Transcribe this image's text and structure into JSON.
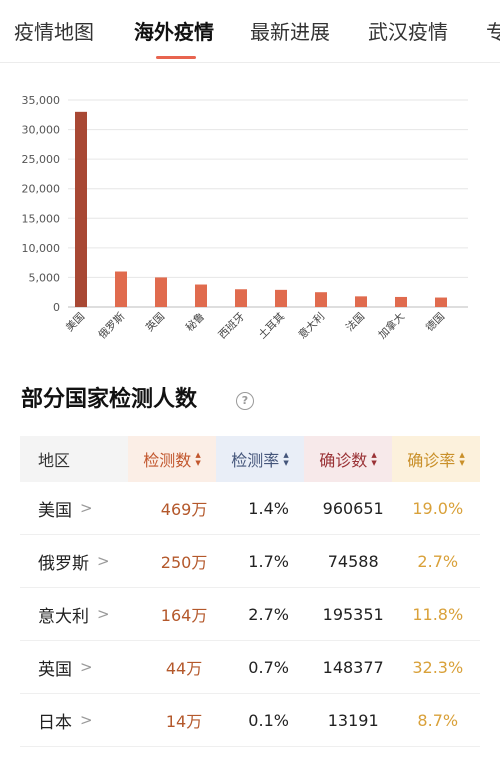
{
  "tabs": [
    {
      "label": "疫情地图",
      "active": false
    },
    {
      "label": "海外疫情",
      "active": true
    },
    {
      "label": "最新进展",
      "active": false
    },
    {
      "label": "武汉疫情",
      "active": false
    },
    {
      "label": "专",
      "active": false
    }
  ],
  "colors": {
    "accent": "#e8644f",
    "bar_first": "#a84834",
    "bar_other": "#e06b4e",
    "test_count": "#b4582b",
    "confirm_rate": "#d9a13a"
  },
  "chart_data": {
    "type": "bar",
    "categories": [
      "美国",
      "俄罗斯",
      "英国",
      "秘鲁",
      "西班牙",
      "土耳其",
      "意大利",
      "法国",
      "加拿大",
      "德国"
    ],
    "values": [
      33000,
      6000,
      5000,
      3800,
      3000,
      2900,
      2500,
      1800,
      1700,
      1600
    ],
    "y_ticks": [
      "0",
      "5,000",
      "10,000",
      "15,000",
      "20,000",
      "25,000",
      "30,000",
      "35,000"
    ],
    "ylim": [
      0,
      35000
    ],
    "grid": true
  },
  "section": {
    "title": "部分国家检测人数",
    "help_icon": "question-circle-icon"
  },
  "table": {
    "headers": [
      "地区",
      "检测数",
      "检测率",
      "确诊数",
      "确诊率"
    ],
    "sort_icon": "sort-updown-icon",
    "rows": [
      {
        "region": "美国",
        "tests": "469万",
        "test_rate": "1.4%",
        "confirmed": "960651",
        "confirm_rate": "19.0%"
      },
      {
        "region": "俄罗斯",
        "tests": "250万",
        "test_rate": "1.7%",
        "confirmed": "74588",
        "confirm_rate": "2.7%"
      },
      {
        "region": "意大利",
        "tests": "164万",
        "test_rate": "2.7%",
        "confirmed": "195351",
        "confirm_rate": "11.8%"
      },
      {
        "region": "英国",
        "tests": "44万",
        "test_rate": "0.7%",
        "confirmed": "148377",
        "confirm_rate": "32.3%"
      },
      {
        "region": "日本",
        "tests": "14万",
        "test_rate": "0.1%",
        "confirmed": "13191",
        "confirm_rate": "8.7%"
      }
    ]
  }
}
